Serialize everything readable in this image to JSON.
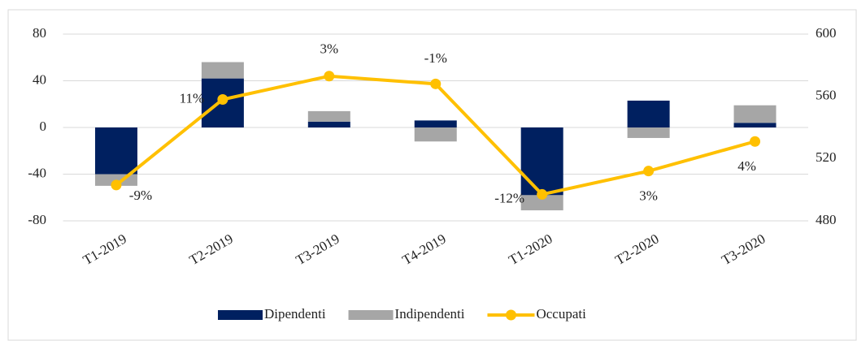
{
  "chart_data": {
    "type": "bar",
    "categories": [
      "T1-2019",
      "T2-2019",
      "T3-2019",
      "T4-2019",
      "T1-2020",
      "T2-2020",
      "T3-2020"
    ],
    "series": [
      {
        "name": "Dipendenti",
        "color": "#002060",
        "values": [
          -40,
          42,
          5,
          6,
          -58,
          23,
          4
        ]
      },
      {
        "name": "Indipendenti",
        "color": "#a6a6a6",
        "values": [
          -10,
          14,
          9,
          -12,
          -13,
          -9,
          15
        ]
      },
      {
        "name": "Occupati",
        "color": "#ffc000",
        "type": "line",
        "axis": "y2",
        "values": [
          503,
          558,
          573,
          568,
          497,
          512,
          531
        ],
        "labels": [
          "-9%",
          "11%",
          "3%",
          "-1%",
          "-12%",
          "3%",
          "4%"
        ]
      }
    ],
    "ylim": [
      -80,
      80
    ],
    "yticks": [
      -80,
      -40,
      0,
      40,
      80
    ],
    "y2lim": [
      480,
      600
    ],
    "y2ticks": [
      480,
      520,
      560,
      600
    ],
    "grid": true,
    "legend": "bottom"
  }
}
